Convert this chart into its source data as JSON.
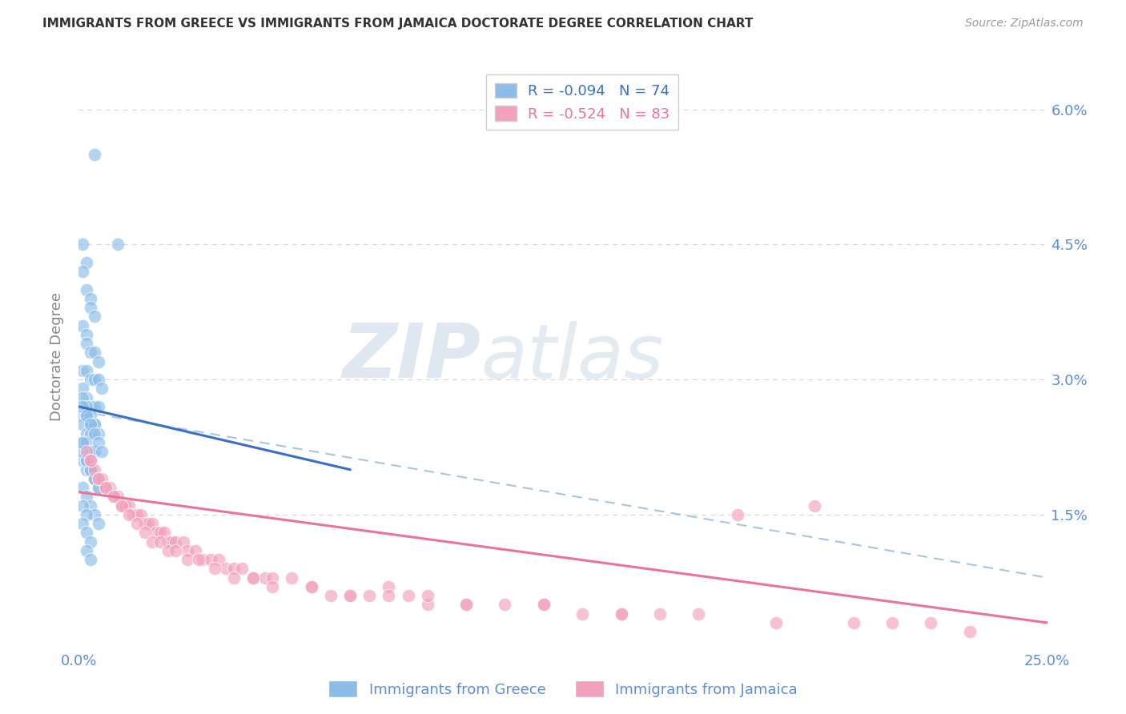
{
  "title": "IMMIGRANTS FROM GREECE VS IMMIGRANTS FROM JAMAICA DOCTORATE DEGREE CORRELATION CHART",
  "source": "Source: ZipAtlas.com",
  "ylabel": "Doctorate Degree",
  "xlim": [
    0.0,
    0.25
  ],
  "ylim": [
    0.0,
    0.065
  ],
  "yticks": [
    0.0,
    0.015,
    0.03,
    0.045,
    0.06
  ],
  "ytick_labels_right": [
    "",
    "1.5%",
    "3.0%",
    "4.5%",
    "6.0%"
  ],
  "xtick_labels": [
    "0.0%",
    "25.0%"
  ],
  "greece_R": -0.094,
  "greece_N": 74,
  "jamaica_R": -0.524,
  "jamaica_N": 83,
  "greece_color": "#8bbde8",
  "jamaica_color": "#f2a0bb",
  "greece_line_color": "#3a6fc4",
  "jamaica_line_color": "#e8749a",
  "dashed_line_color": "#aac4e0",
  "background_color": "#ffffff",
  "grid_color": "#d0d0d0",
  "axis_label_color": "#888888",
  "tick_label_color": "#5b8dd9",
  "watermark_zip_color": "#c8d8e8",
  "watermark_atlas_color": "#b8cce0",
  "greece_line_x0": 0.0,
  "greece_line_y0": 0.027,
  "greece_line_x1": 0.07,
  "greece_line_y1": 0.02,
  "jamaica_line_x0": 0.0,
  "jamaica_line_y0": 0.0175,
  "jamaica_line_x1": 0.25,
  "jamaica_line_y1": 0.003,
  "dashed_line_x0": 0.0,
  "dashed_line_y0": 0.0265,
  "dashed_line_x1": 0.25,
  "dashed_line_y1": 0.008,
  "greece_scatter_x": [
    0.004,
    0.01,
    0.001,
    0.002,
    0.001,
    0.002,
    0.003,
    0.003,
    0.004,
    0.001,
    0.002,
    0.002,
    0.003,
    0.004,
    0.005,
    0.001,
    0.002,
    0.003,
    0.004,
    0.005,
    0.006,
    0.001,
    0.002,
    0.003,
    0.004,
    0.005,
    0.001,
    0.002,
    0.003,
    0.004,
    0.001,
    0.002,
    0.003,
    0.001,
    0.002,
    0.003,
    0.004,
    0.001,
    0.002,
    0.003,
    0.004,
    0.005,
    0.001,
    0.002,
    0.003,
    0.004,
    0.005,
    0.006,
    0.001,
    0.002,
    0.003,
    0.004,
    0.002,
    0.003,
    0.004,
    0.005,
    0.001,
    0.002,
    0.003,
    0.004,
    0.005,
    0.001,
    0.002,
    0.003,
    0.004,
    0.005,
    0.001,
    0.002,
    0.001,
    0.002,
    0.003,
    0.001,
    0.002,
    0.003
  ],
  "greece_scatter_y": [
    0.055,
    0.045,
    0.045,
    0.043,
    0.042,
    0.04,
    0.039,
    0.038,
    0.037,
    0.036,
    0.035,
    0.034,
    0.033,
    0.033,
    0.032,
    0.031,
    0.031,
    0.03,
    0.03,
    0.03,
    0.029,
    0.029,
    0.028,
    0.027,
    0.027,
    0.027,
    0.026,
    0.026,
    0.025,
    0.025,
    0.025,
    0.024,
    0.024,
    0.023,
    0.023,
    0.022,
    0.022,
    0.028,
    0.027,
    0.026,
    0.025,
    0.024,
    0.027,
    0.026,
    0.025,
    0.024,
    0.023,
    0.022,
    0.021,
    0.02,
    0.02,
    0.019,
    0.021,
    0.02,
    0.019,
    0.018,
    0.018,
    0.017,
    0.016,
    0.015,
    0.014,
    0.022,
    0.021,
    0.02,
    0.019,
    0.018,
    0.016,
    0.015,
    0.014,
    0.013,
    0.012,
    0.023,
    0.011,
    0.01
  ],
  "jamaica_scatter_x": [
    0.002,
    0.003,
    0.004,
    0.005,
    0.006,
    0.007,
    0.008,
    0.009,
    0.01,
    0.011,
    0.012,
    0.013,
    0.014,
    0.015,
    0.016,
    0.017,
    0.018,
    0.019,
    0.02,
    0.021,
    0.022,
    0.023,
    0.024,
    0.025,
    0.027,
    0.028,
    0.03,
    0.032,
    0.034,
    0.036,
    0.038,
    0.04,
    0.042,
    0.045,
    0.048,
    0.05,
    0.055,
    0.06,
    0.065,
    0.07,
    0.075,
    0.08,
    0.085,
    0.09,
    0.1,
    0.11,
    0.12,
    0.13,
    0.14,
    0.15,
    0.003,
    0.005,
    0.007,
    0.009,
    0.011,
    0.013,
    0.015,
    0.017,
    0.019,
    0.021,
    0.023,
    0.025,
    0.028,
    0.031,
    0.035,
    0.04,
    0.045,
    0.05,
    0.06,
    0.07,
    0.08,
    0.09,
    0.1,
    0.12,
    0.14,
    0.16,
    0.18,
    0.2,
    0.21,
    0.22,
    0.17,
    0.19,
    0.23
  ],
  "jamaica_scatter_y": [
    0.022,
    0.021,
    0.02,
    0.019,
    0.019,
    0.018,
    0.018,
    0.017,
    0.017,
    0.016,
    0.016,
    0.016,
    0.015,
    0.015,
    0.015,
    0.014,
    0.014,
    0.014,
    0.013,
    0.013,
    0.013,
    0.012,
    0.012,
    0.012,
    0.012,
    0.011,
    0.011,
    0.01,
    0.01,
    0.01,
    0.009,
    0.009,
    0.009,
    0.008,
    0.008,
    0.008,
    0.008,
    0.007,
    0.006,
    0.006,
    0.006,
    0.007,
    0.006,
    0.005,
    0.005,
    0.005,
    0.005,
    0.004,
    0.004,
    0.004,
    0.021,
    0.019,
    0.018,
    0.017,
    0.016,
    0.015,
    0.014,
    0.013,
    0.012,
    0.012,
    0.011,
    0.011,
    0.01,
    0.01,
    0.009,
    0.008,
    0.008,
    0.007,
    0.007,
    0.006,
    0.006,
    0.006,
    0.005,
    0.005,
    0.004,
    0.004,
    0.003,
    0.003,
    0.003,
    0.003,
    0.015,
    0.016,
    0.002
  ]
}
